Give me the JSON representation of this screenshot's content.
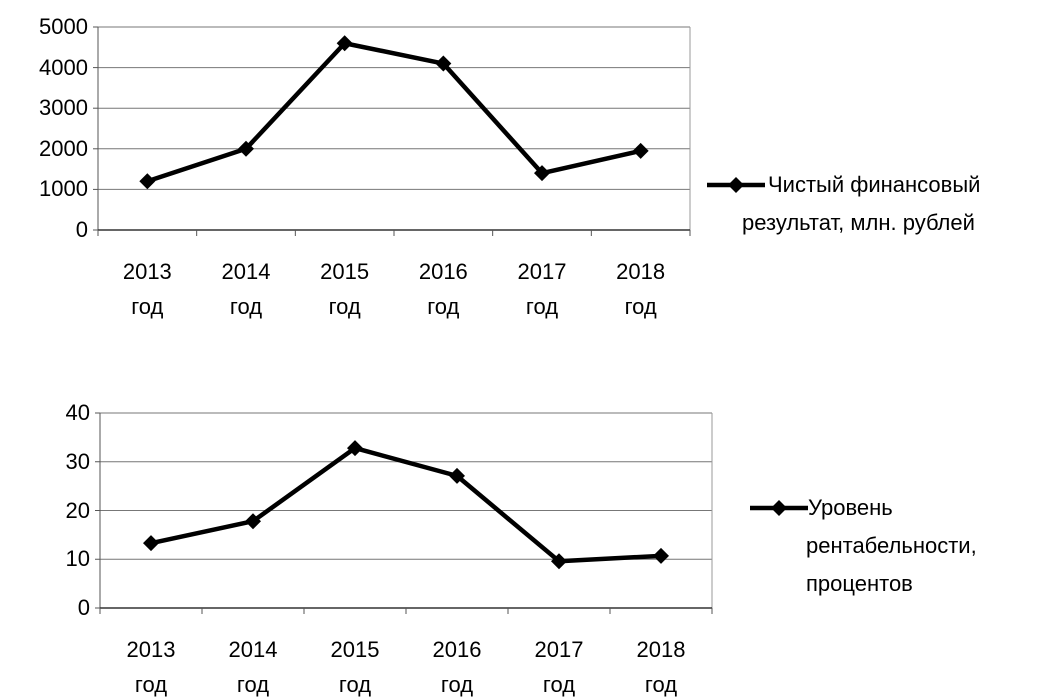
{
  "chart_data": [
    {
      "type": "line",
      "categories": [
        "2013 год",
        "2014 год",
        "2015 год",
        "2016 год",
        "2017 год",
        "2018 год"
      ],
      "series": [
        {
          "name": "Чистый финансовый результат, млн. рублей",
          "color": "#000000",
          "values": [
            1200,
            2000,
            4600,
            4100,
            1400,
            1950
          ]
        }
      ],
      "ylim": [
        0,
        5000
      ],
      "yticks": [
        0,
        1000,
        2000,
        3000,
        4000,
        5000
      ],
      "grid": true,
      "legend": "right"
    },
    {
      "type": "line",
      "categories": [
        "2013 год",
        "2014 год",
        "2015 год",
        "2016 год",
        "2017 год",
        "2018 год"
      ],
      "series": [
        {
          "name": "Уровень рентабельности, процентов",
          "color": "#000000",
          "values": [
            13.3,
            17.8,
            32.8,
            27.1,
            9.6,
            10.7
          ]
        }
      ],
      "ylim": [
        0,
        40
      ],
      "yticks": [
        0,
        10,
        20,
        30,
        40
      ],
      "grid": true,
      "legend": "right"
    }
  ]
}
